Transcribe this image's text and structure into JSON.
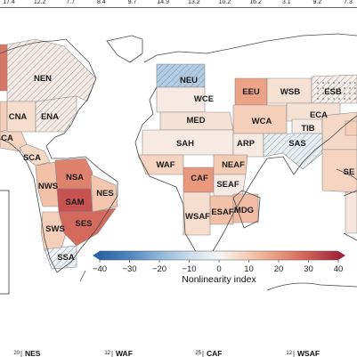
{
  "colorbar": {
    "title": "Nonlinearity index",
    "min": -40,
    "max": 40,
    "ticks": [
      "−40",
      "−30",
      "−20",
      "−10",
      "0",
      "10",
      "20",
      "30",
      "40"
    ],
    "colors": [
      "#2c63a8",
      "#4f86bf",
      "#8fb6d8",
      "#c8dbeb",
      "#f7f7f7",
      "#f5cbb3",
      "#e8987c",
      "#cf5f56",
      "#a3243a"
    ]
  },
  "top_values": [
    "17.4",
    "12.2",
    "7.7",
    "8.4",
    "9.7",
    "14.9",
    "13.2",
    "10.2",
    "16.2",
    "3.1",
    "9.2",
    "7.3"
  ],
  "regions": [
    {
      "id": "NEN",
      "label": "NEN",
      "value": 3,
      "hatch": true
    },
    {
      "id": "CNA",
      "label": "CNA",
      "value": 6,
      "hatch": false
    },
    {
      "id": "ENA",
      "label": "ENA",
      "value": 3,
      "hatch": true
    },
    {
      "id": "CA",
      "label": "CA",
      "value": 8,
      "hatch": false
    },
    {
      "id": "SCA",
      "label": "SCA",
      "value": 7,
      "hatch": false
    },
    {
      "id": "NSA",
      "label": "NSA",
      "value": 24,
      "hatch": false
    },
    {
      "id": "NWS",
      "label": "NWS",
      "value": 12,
      "hatch": false
    },
    {
      "id": "SAM",
      "label": "SAM",
      "value": 32,
      "hatch": false
    },
    {
      "id": "NES",
      "label": "NES",
      "value": 11,
      "hatch": false
    },
    {
      "id": "SWS",
      "label": "SWS",
      "value": 9,
      "hatch": false
    },
    {
      "id": "SES",
      "label": "SES",
      "value": 28,
      "hatch": false
    },
    {
      "id": "SSA",
      "label": "SSA",
      "value": -2,
      "hatch": true
    },
    {
      "id": "NEU",
      "label": "NEU",
      "value": -14,
      "hatch": true
    },
    {
      "id": "WCE",
      "label": "WCE",
      "value": 3,
      "hatch": false
    },
    {
      "id": "EEU",
      "label": "EEU",
      "value": 18,
      "hatch": false
    },
    {
      "id": "WSB",
      "label": "WSB",
      "value": 5,
      "hatch": false
    },
    {
      "id": "ESB",
      "label": "ESB",
      "value": 2,
      "hatch": true
    },
    {
      "id": "MED",
      "label": "MED",
      "value": 5,
      "hatch": false
    },
    {
      "id": "WCA",
      "label": "WCA",
      "value": 9,
      "hatch": false
    },
    {
      "id": "ECA",
      "label": "ECA",
      "value": 5,
      "hatch": false
    },
    {
      "id": "TIB",
      "label": "TIB",
      "value": 3,
      "hatch": false
    },
    {
      "id": "SAH",
      "label": "SAH",
      "value": 3,
      "hatch": false
    },
    {
      "id": "ARP",
      "label": "ARP",
      "value": 3,
      "hatch": false
    },
    {
      "id": "SAS",
      "label": "SAS",
      "value": -3,
      "hatch": true
    },
    {
      "id": "WAF",
      "label": "WAF",
      "value": 8,
      "hatch": false
    },
    {
      "id": "CAF",
      "label": "CAF",
      "value": 20,
      "hatch": false
    },
    {
      "id": "NEAF",
      "label": "NEAF",
      "value": 10,
      "hatch": false
    },
    {
      "id": "SEAF",
      "label": "SEAF",
      "value": 3,
      "hatch": false
    },
    {
      "id": "WSAF",
      "label": "WSAF",
      "value": 6,
      "hatch": false
    },
    {
      "id": "ESAF",
      "label": "ESAF",
      "value": 12,
      "hatch": false
    },
    {
      "id": "MDG",
      "label": "MDG",
      "value": 13,
      "hatch": false
    },
    {
      "id": "EAS",
      "label": "",
      "value": 7,
      "hatch": false
    },
    {
      "id": "SEA",
      "label": "SE",
      "value": 8,
      "hatch": false
    },
    {
      "id": "NAU",
      "label": "",
      "value": 4,
      "hatch": false
    },
    {
      "id": "NWN",
      "label": "",
      "value": 26,
      "hatch": false
    },
    {
      "id": "WNA",
      "label": "",
      "value": 9,
      "hatch": false
    },
    {
      "id": "ESB2",
      "label": "",
      "value": 9,
      "hatch": false
    }
  ],
  "bottom_panels": [
    {
      "label": "NES",
      "ymax": "20"
    },
    {
      "label": "WAF",
      "ymax": "12"
    },
    {
      "label": "CAF",
      "ymax": "25"
    },
    {
      "label": "WSAF",
      "ymax": "12"
    }
  ]
}
